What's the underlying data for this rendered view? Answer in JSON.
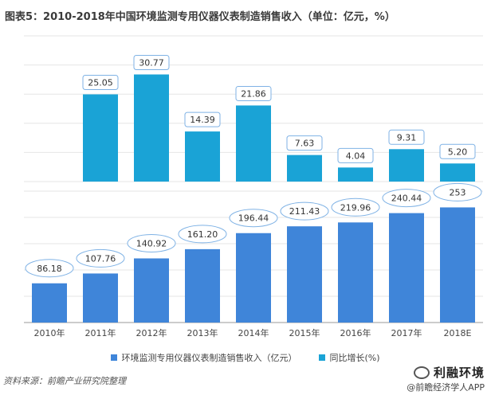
{
  "chart_data": {
    "type": "bar",
    "title": "图表5：2010-2018年中国环境监测专用仪器仪表制造销售收入（单位：亿元，%）",
    "categories": [
      "2010年",
      "2011年",
      "2012年",
      "2013年",
      "2014年",
      "2015年",
      "2016年",
      "2017年",
      "2018E"
    ],
    "series": [
      {
        "name": "环境监测专用仪器仪表制造销售收入（亿元）",
        "color": "#3f85d9",
        "values": [
          86.18,
          107.76,
          140.92,
          161.2,
          196.44,
          211.43,
          219.96,
          240.44,
          253
        ],
        "labels": [
          "86.18",
          "107.76",
          "140.92",
          "161.20",
          "196.44",
          "211.43",
          "219.96",
          "240.44",
          "253"
        ]
      },
      {
        "name": "同比增长(%)",
        "color": "#1aa3d6",
        "values": [
          null,
          25.05,
          30.77,
          14.39,
          21.86,
          7.63,
          4.04,
          9.31,
          5.2
        ],
        "labels": [
          "",
          "25.05",
          "30.77",
          "14.39",
          "21.86",
          "7.63",
          "4.04",
          "9.31",
          "5.20"
        ]
      }
    ],
    "ylim_revenue": [
      0,
      280
    ],
    "ylim_growth": [
      0,
      35
    ],
    "grid": true,
    "legend": "bottom-center"
  },
  "source": "资料来源：前瞻产业研究院整理",
  "brand": "利融环境",
  "app_credit": "@前瞻经济学人APP"
}
